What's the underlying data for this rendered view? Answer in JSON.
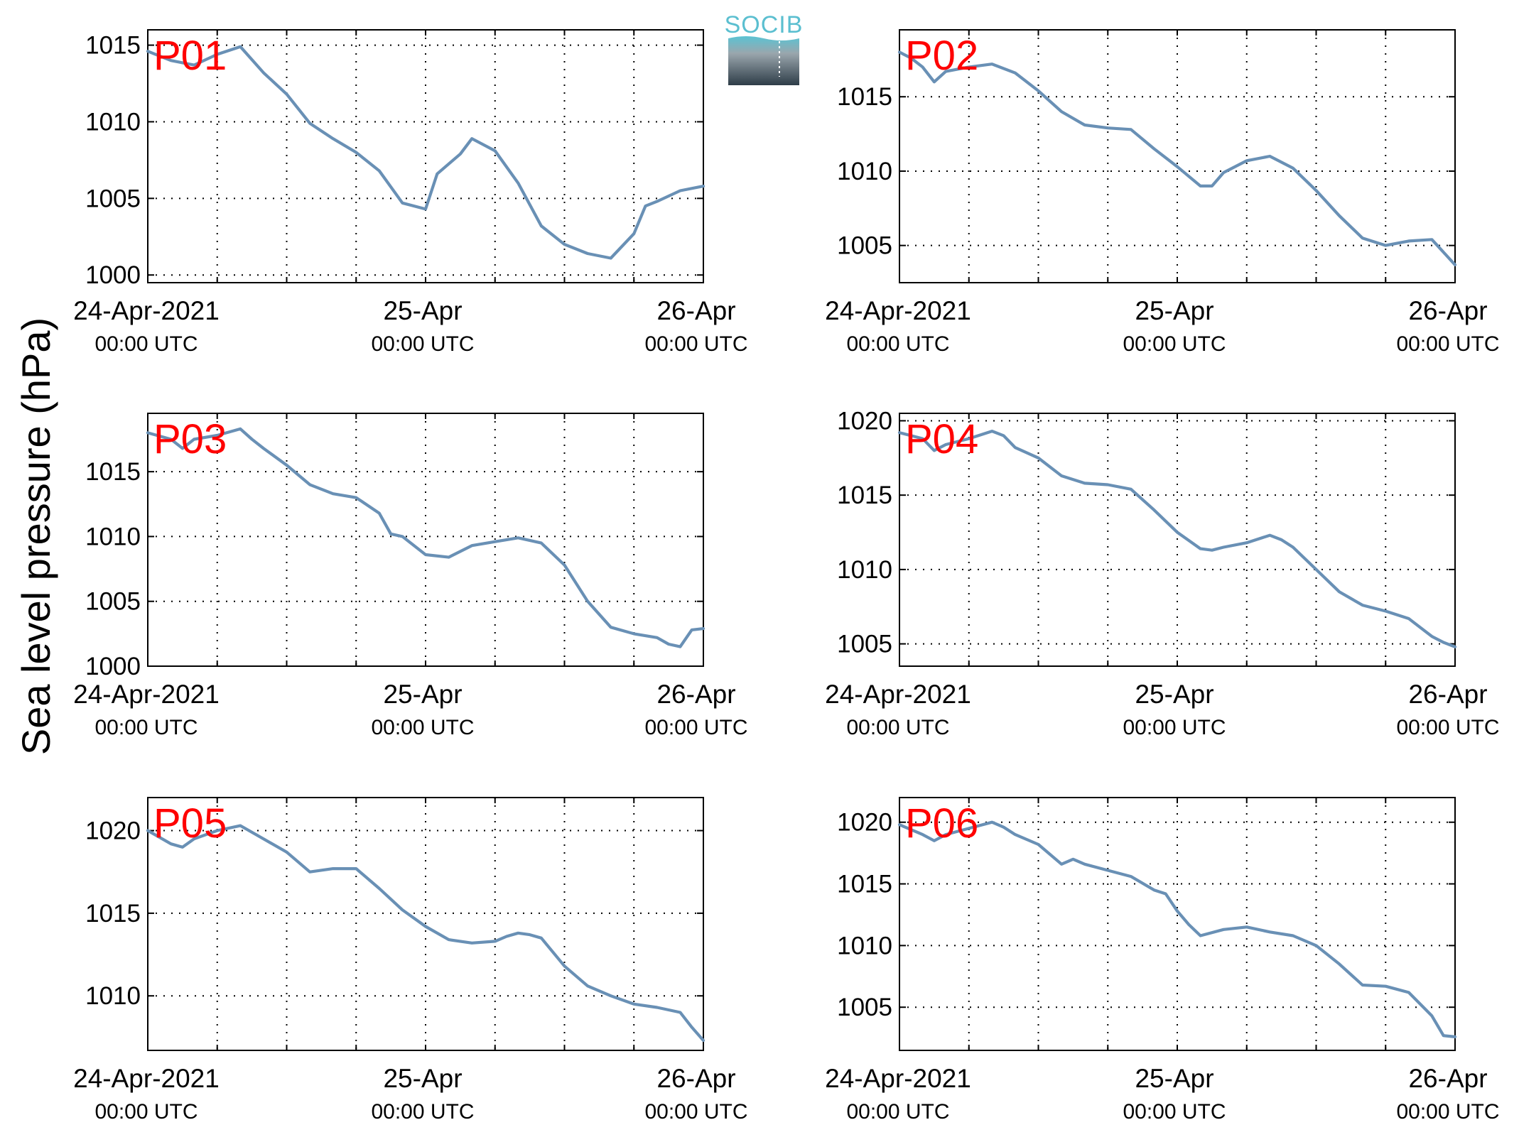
{
  "figure": {
    "ylabel": "Sea level pressure (hPa)",
    "logo_text": "SOCIB",
    "line_color": "#6990b5",
    "label_color": "#ff0000"
  },
  "chart_data": [
    {
      "type": "line",
      "label": "P01",
      "ylim": [
        999.5,
        1016
      ],
      "yticks": [
        1000,
        1005,
        1010,
        1015
      ],
      "xlim": [
        "2021-04-24 00:00",
        "2021-04-26 00:00"
      ],
      "xtick_labels": [
        [
          "24-Apr-2021",
          "00:00 UTC"
        ],
        [
          "25-Apr",
          "00:00 UTC"
        ],
        [
          "26-Apr",
          "00:00 UTC"
        ]
      ],
      "grid": true,
      "x_hours": [
        0,
        2,
        4,
        6,
        8,
        10,
        12,
        14,
        16,
        18,
        20,
        22,
        24,
        25,
        27,
        28,
        30,
        32,
        34,
        36,
        38,
        40,
        42,
        43,
        44,
        46,
        48
      ],
      "y": [
        1014.6,
        1014.0,
        1013.7,
        1014.4,
        1014.9,
        1013.2,
        1011.8,
        1009.9,
        1008.9,
        1008.0,
        1006.8,
        1004.7,
        1004.3,
        1006.6,
        1007.9,
        1008.9,
        1008.1,
        1006.0,
        1003.2,
        1002.0,
        1001.4,
        1001.1,
        1002.7,
        1004.5,
        1004.8,
        1005.5,
        1005.8
      ]
    },
    {
      "type": "line",
      "label": "P02",
      "ylim": [
        1002.5,
        1019.5
      ],
      "yticks": [
        1005,
        1010,
        1015
      ],
      "xlim": [
        "2021-04-24 00:00",
        "2021-04-26 00:00"
      ],
      "xtick_labels": [
        [
          "24-Apr-2021",
          "00:00 UTC"
        ],
        [
          "25-Apr",
          "00:00 UTC"
        ],
        [
          "26-Apr",
          "00:00 UTC"
        ]
      ],
      "grid": true,
      "x_hours": [
        0,
        1,
        2,
        3,
        4,
        6,
        8,
        10,
        12,
        14,
        16,
        18,
        20,
        22,
        24,
        26,
        27,
        28,
        30,
        32,
        33,
        34,
        36,
        38,
        40,
        42,
        44,
        46,
        48
      ],
      "y": [
        1018.0,
        1017.6,
        1017.0,
        1016.0,
        1016.7,
        1017.0,
        1017.2,
        1016.6,
        1015.4,
        1014.0,
        1013.1,
        1012.9,
        1012.8,
        1011.5,
        1010.3,
        1009.0,
        1009.0,
        1009.9,
        1010.7,
        1011.0,
        1010.6,
        1010.2,
        1008.7,
        1007.0,
        1005.5,
        1005.0,
        1005.3,
        1005.4,
        1003.7
      ]
    },
    {
      "type": "line",
      "label": "P03",
      "ylim": [
        1000,
        1019.5
      ],
      "yticks": [
        1000,
        1005,
        1010,
        1015
      ],
      "xlim": [
        "2021-04-24 00:00",
        "2021-04-26 00:00"
      ],
      "xtick_labels": [
        [
          "24-Apr-2021",
          "00:00 UTC"
        ],
        [
          "25-Apr",
          "00:00 UTC"
        ],
        [
          "26-Apr",
          "00:00 UTC"
        ]
      ],
      "grid": true,
      "x_hours": [
        0,
        2,
        3,
        4,
        6,
        8,
        9,
        10,
        12,
        14,
        16,
        18,
        20,
        21,
        22,
        24,
        26,
        28,
        30,
        32,
        34,
        36,
        38,
        40,
        42,
        44,
        45,
        46,
        47,
        48
      ],
      "y": [
        1018.0,
        1017.5,
        1016.8,
        1017.5,
        1017.8,
        1018.3,
        1017.5,
        1016.8,
        1015.5,
        1014.0,
        1013.3,
        1013.0,
        1011.8,
        1010.2,
        1010.0,
        1008.6,
        1008.4,
        1009.3,
        1009.6,
        1009.9,
        1009.5,
        1007.8,
        1005.0,
        1003.0,
        1002.5,
        1002.2,
        1001.7,
        1001.5,
        1002.8,
        1002.9
      ]
    },
    {
      "type": "line",
      "label": "P04",
      "ylim": [
        1003.5,
        1020.5
      ],
      "yticks": [
        1005,
        1010,
        1015,
        1020
      ],
      "xlim": [
        "2021-04-24 00:00",
        "2021-04-26 00:00"
      ],
      "xtick_labels": [
        [
          "24-Apr-2021",
          "00:00 UTC"
        ],
        [
          "25-Apr",
          "00:00 UTC"
        ],
        [
          "26-Apr",
          "00:00 UTC"
        ]
      ],
      "grid": true,
      "x_hours": [
        0,
        2,
        3,
        4,
        6,
        8,
        9,
        10,
        12,
        14,
        16,
        18,
        20,
        22,
        24,
        26,
        27,
        28,
        30,
        32,
        33,
        34,
        36,
        38,
        40,
        42,
        44,
        46,
        47,
        48
      ],
      "y": [
        1019.2,
        1018.8,
        1018.0,
        1018.4,
        1018.8,
        1019.3,
        1019.0,
        1018.2,
        1017.5,
        1016.3,
        1015.8,
        1015.7,
        1015.4,
        1014.0,
        1012.5,
        1011.4,
        1011.3,
        1011.5,
        1011.8,
        1012.3,
        1012.0,
        1011.5,
        1010.0,
        1008.5,
        1007.6,
        1007.2,
        1006.7,
        1005.5,
        1005.1,
        1004.8
      ]
    },
    {
      "type": "line",
      "label": "P05",
      "ylim": [
        1006.7,
        1022
      ],
      "yticks": [
        1010,
        1015,
        1020
      ],
      "xlim": [
        "2021-04-24 00:00",
        "2021-04-26 00:00"
      ],
      "xtick_labels": [
        [
          "24-Apr-2021",
          "00:00 UTC"
        ],
        [
          "25-Apr",
          "00:00 UTC"
        ],
        [
          "26-Apr",
          "00:00 UTC"
        ]
      ],
      "grid": true,
      "x_hours": [
        0,
        2,
        3,
        4,
        6,
        8,
        10,
        12,
        14,
        16,
        18,
        20,
        22,
        24,
        26,
        28,
        30,
        31,
        32,
        33,
        34,
        36,
        38,
        40,
        42,
        44,
        46,
        47,
        48
      ],
      "y": [
        1020.0,
        1019.2,
        1019.0,
        1019.5,
        1020.0,
        1020.3,
        1019.5,
        1018.7,
        1017.5,
        1017.7,
        1017.7,
        1016.5,
        1015.2,
        1014.2,
        1013.4,
        1013.2,
        1013.3,
        1013.6,
        1013.8,
        1013.7,
        1013.5,
        1011.8,
        1010.6,
        1010.0,
        1009.5,
        1009.3,
        1009.0,
        1008.1,
        1007.3
      ]
    },
    {
      "type": "line",
      "label": "P06",
      "ylim": [
        1001.5,
        1022
      ],
      "yticks": [
        1005,
        1010,
        1015,
        1020
      ],
      "xlim": [
        "2021-04-24 00:00",
        "2021-04-26 00:00"
      ],
      "xtick_labels": [
        [
          "24-Apr-2021",
          "00:00 UTC"
        ],
        [
          "25-Apr",
          "00:00 UTC"
        ],
        [
          "26-Apr",
          "00:00 UTC"
        ]
      ],
      "grid": true,
      "x_hours": [
        0,
        2,
        3,
        4,
        6,
        8,
        9,
        10,
        12,
        14,
        15,
        16,
        18,
        20,
        22,
        23,
        24,
        25,
        26,
        28,
        30,
        32,
        34,
        36,
        38,
        40,
        42,
        44,
        46,
        47,
        48
      ],
      "y": [
        1019.8,
        1019.0,
        1018.5,
        1019.0,
        1019.5,
        1020.0,
        1019.6,
        1019.0,
        1018.2,
        1016.6,
        1017.0,
        1016.6,
        1016.1,
        1015.6,
        1014.5,
        1014.2,
        1012.8,
        1011.7,
        1010.8,
        1011.3,
        1011.5,
        1011.1,
        1010.8,
        1010.0,
        1008.5,
        1006.8,
        1006.7,
        1006.2,
        1004.3,
        1002.7,
        1002.6
      ]
    }
  ]
}
